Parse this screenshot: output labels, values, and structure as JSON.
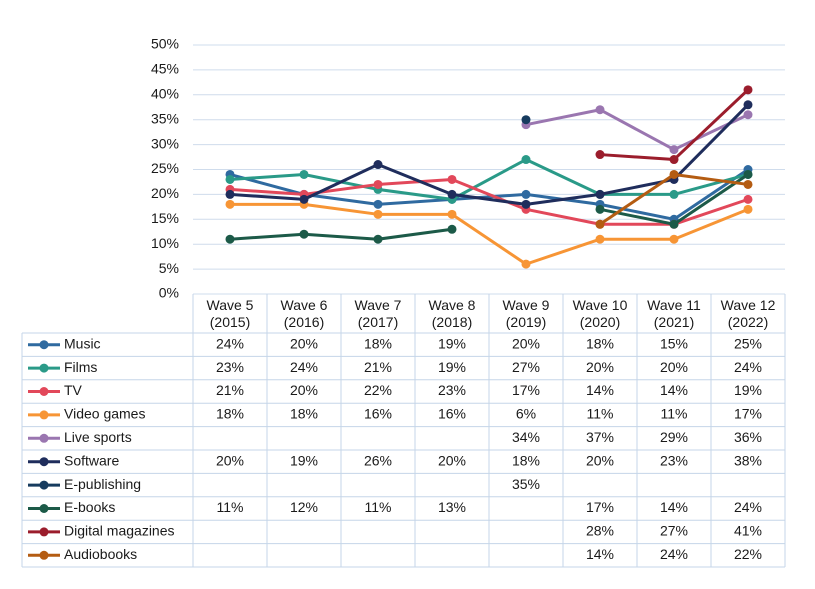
{
  "chart_data": {
    "type": "line",
    "categories": [
      "Wave 5 (2015)",
      "Wave 6 (2016)",
      "Wave 7 (2017)",
      "Wave 8 (2018)",
      "Wave 9 (2019)",
      "Wave 10 (2020)",
      "Wave 11 (2021)",
      "Wave 12 (2022)"
    ],
    "ylim": [
      0,
      50
    ],
    "yticks": [
      {
        "value": 0,
        "label": "0%"
      },
      {
        "value": 5,
        "label": "5%"
      },
      {
        "value": 10,
        "label": "10%"
      },
      {
        "value": 15,
        "label": "15%"
      },
      {
        "value": 20,
        "label": "20%"
      },
      {
        "value": 25,
        "label": "25%"
      },
      {
        "value": 30,
        "label": "30%"
      },
      {
        "value": 35,
        "label": "35%"
      },
      {
        "value": 40,
        "label": "40%"
      },
      {
        "value": 45,
        "label": "45%"
      },
      {
        "value": 50,
        "label": "50%"
      }
    ],
    "grid": true,
    "series": [
      {
        "name": "Music",
        "color": "#2f6aa0",
        "values": [
          24,
          20,
          18,
          19,
          20,
          18,
          15,
          25
        ],
        "value_labels": [
          "24%",
          "20%",
          "18%",
          "19%",
          "20%",
          "18%",
          "15%",
          "25%"
        ]
      },
      {
        "name": "Films",
        "color": "#2a9a88",
        "values": [
          23,
          24,
          21,
          19,
          27,
          20,
          20,
          24
        ],
        "value_labels": [
          "23%",
          "24%",
          "21%",
          "19%",
          "27%",
          "20%",
          "20%",
          "24%"
        ]
      },
      {
        "name": "TV",
        "color": "#e2485a",
        "values": [
          21,
          20,
          22,
          23,
          17,
          14,
          14,
          19
        ],
        "value_labels": [
          "21%",
          "20%",
          "22%",
          "23%",
          "17%",
          "14%",
          "14%",
          "19%"
        ]
      },
      {
        "name": "Video games",
        "color": "#f79535",
        "values": [
          18,
          18,
          16,
          16,
          6,
          11,
          11,
          17
        ],
        "value_labels": [
          "18%",
          "18%",
          "16%",
          "16%",
          "6%",
          "11%",
          "11%",
          "17%"
        ]
      },
      {
        "name": "Live sports",
        "color": "#9a76b0",
        "values": [
          null,
          null,
          null,
          null,
          34,
          37,
          29,
          36
        ],
        "value_labels": [
          null,
          null,
          null,
          null,
          "34%",
          "37%",
          "29%",
          "36%"
        ]
      },
      {
        "name": "Software",
        "color": "#1f2d5c",
        "values": [
          20,
          19,
          26,
          20,
          18,
          20,
          23,
          38
        ],
        "value_labels": [
          "20%",
          "19%",
          "26%",
          "20%",
          "18%",
          "20%",
          "23%",
          "38%"
        ]
      },
      {
        "name": "E-publishing",
        "color": "#163b5e",
        "values": [
          null,
          null,
          null,
          null,
          35,
          null,
          null,
          null
        ],
        "value_labels": [
          null,
          null,
          null,
          null,
          "35%",
          null,
          null,
          null
        ]
      },
      {
        "name": "E-books",
        "color": "#1c5a48",
        "values": [
          11,
          12,
          11,
          13,
          null,
          17,
          14,
          24
        ],
        "value_labels": [
          "11%",
          "12%",
          "11%",
          "13%",
          null,
          "17%",
          "14%",
          "24%"
        ]
      },
      {
        "name": "Digital magazines",
        "color": "#9b1d2c",
        "values": [
          null,
          null,
          null,
          null,
          null,
          28,
          27,
          41
        ],
        "value_labels": [
          null,
          null,
          null,
          null,
          null,
          "28%",
          "27%",
          "41%"
        ]
      },
      {
        "name": "Audiobooks",
        "color": "#b45c12",
        "values": [
          null,
          null,
          null,
          null,
          null,
          14,
          24,
          22
        ],
        "value_labels": [
          null,
          null,
          null,
          null,
          null,
          "14%",
          "24%",
          "22%"
        ]
      }
    ]
  }
}
